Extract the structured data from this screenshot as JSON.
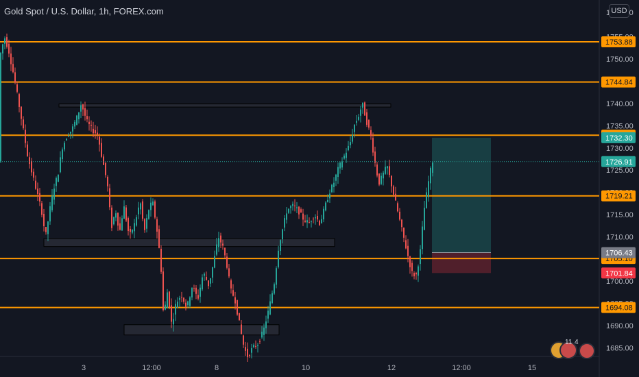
{
  "header": {
    "title": "Gold Spot / U.S. Dollar, 1h, FOREX.com",
    "currency": "USD"
  },
  "chart_data": {
    "type": "candlestick",
    "symbol": "Gold Spot / U.S. Dollar",
    "interval": "1h",
    "source": "FOREX.com",
    "y_axis": {
      "ylim": [
        1682.5,
        1760
      ],
      "ticks": [
        1685,
        1690,
        1695,
        1700,
        1705,
        1710,
        1715,
        1720,
        1725,
        1730,
        1735,
        1740,
        1745,
        1750,
        1755
      ],
      "tick_labels": [
        "1685.00",
        "1690.00",
        "1695.00",
        "1700.00",
        "1705.00",
        "1710.00",
        "1715.00",
        "1720.00",
        "1725.00",
        "1730.00",
        "1735.00",
        "1740.00",
        "1745.00",
        "1750.00",
        "1755.00"
      ],
      "top_partial_label": "1760.00"
    },
    "x_axis": {
      "labels": [
        "3",
        "12:00",
        "8",
        "10",
        "12",
        "12:00",
        "15"
      ]
    },
    "horizontal_levels": [
      {
        "price": 1753.88,
        "label": "1753.88",
        "color": "#ff9800"
      },
      {
        "price": 1744.84,
        "label": "1744.84",
        "color": "#ff9800"
      },
      {
        "price": 1732.86,
        "label": "1732.86",
        "color": "#ff9800"
      },
      {
        "price": 1719.21,
        "label": "1719.21",
        "color": "#ff9800"
      },
      {
        "price": 1705.1,
        "label": "1705.10",
        "color": "#ff9800"
      },
      {
        "price": 1694.08,
        "label": "1694.08",
        "color": "#ff9800"
      }
    ],
    "price_tags": [
      {
        "price": 1732.3,
        "label": "1732.30",
        "color": "#26a69a"
      },
      {
        "price": 1726.91,
        "label": "1726.91",
        "color": "#26a69a"
      },
      {
        "price": 1706.43,
        "label": "1706.43",
        "color": "#787b86"
      },
      {
        "price": 1701.84,
        "label": "1701.84",
        "color": "#f23645"
      }
    ],
    "current_price": 1726.91,
    "position": {
      "type": "long",
      "entry": 1706.43,
      "target": 1732.3,
      "stop": 1701.84
    },
    "zones": [
      {
        "low": 1739.2,
        "high": 1739.9
      },
      {
        "low": 1707.8,
        "high": 1709.6
      },
      {
        "low": 1687.9,
        "high": 1690.2
      }
    ],
    "colors": {
      "up": "#26a69a",
      "down": "#ef5350",
      "level": "#ff9800",
      "background": "#131722",
      "grid": "#1e222d",
      "text": "#b2b5be"
    }
  },
  "badges": {
    "count_a": "11",
    "count_b": "4"
  }
}
